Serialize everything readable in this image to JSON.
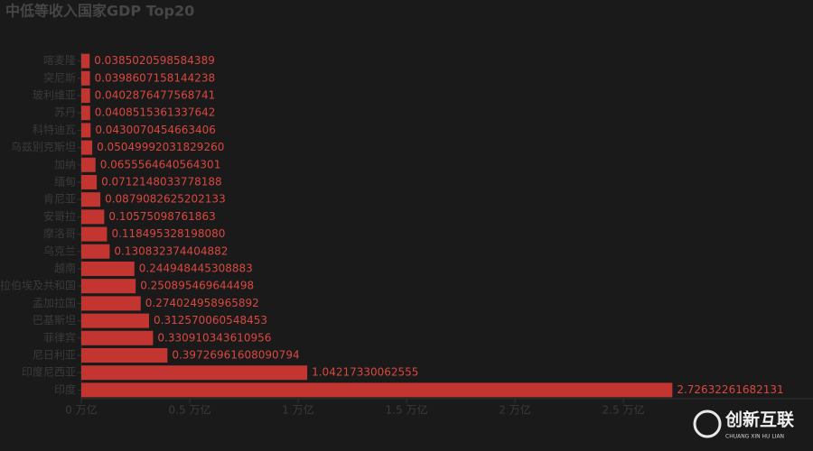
{
  "chart_data": {
    "type": "bar",
    "orientation": "horizontal",
    "title": "中低等收入国家GDP Top20",
    "categories": [
      "喀麦隆",
      "突尼斯",
      "玻利维亚",
      "苏丹",
      "科特迪瓦",
      "乌兹别克斯坦",
      "加纳",
      "缅甸",
      "肯尼亚",
      "安哥拉",
      "摩洛哥",
      "乌克兰",
      "越南",
      "阿拉伯埃及共和国",
      "孟加拉国",
      "巴基斯坦",
      "菲律宾",
      "尼日利亚",
      "印度尼西亚",
      "印度"
    ],
    "values": [
      0.0385020598584389,
      0.0398607158144238,
      0.0402876477568741,
      0.0408515361337642,
      0.0430070454663406,
      0.0504999203182926,
      0.0655564640564301,
      0.0712148033778188,
      0.0879082625202133,
      0.10575098761863,
      0.11849532819808,
      0.130832374404882,
      0.244948445308883,
      0.250895469644498,
      0.274024958965892,
      0.312570060548453,
      0.330910343610956,
      0.397269616080908,
      1.04217330062555,
      2.72632261682131
    ],
    "value_labels": [
      "0.0385020598584389",
      "0.0398607158144238",
      "0.0402876477568741",
      "0.0408515361337642",
      "0.0430070454663406",
      "0.05049992031829260",
      "0.0655564640564301",
      "0.0712148033778188",
      "0.0879082625202133",
      "0.10575098761863",
      "0.118495328198080",
      "0.130832374404882",
      "0.244948445308883",
      "0.250895469644498",
      "0.274024958965892",
      "0.312570060548453",
      "0.330910343610956",
      "0.39726961608090794",
      "1.04217330062555",
      "2.72632261682131"
    ],
    "color": "#c23531",
    "xlim": [
      0,
      3
    ],
    "xticks": [
      {
        "value": 0,
        "label": "0 万亿"
      },
      {
        "value": 0.5,
        "label": "0.5 万亿"
      },
      {
        "value": 1,
        "label": "1 万亿"
      },
      {
        "value": 1.5,
        "label": "1.5 万亿"
      },
      {
        "value": 2,
        "label": "2 万亿"
      },
      {
        "value": 2.5,
        "label": "2.5 万亿"
      }
    ]
  },
  "watermark": {
    "text": "创新互联",
    "subtext": "CHUANG XIN HU LIAN"
  }
}
